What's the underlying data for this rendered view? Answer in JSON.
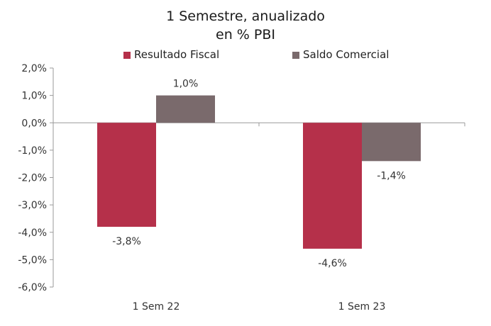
{
  "chart_data": {
    "type": "bar",
    "title": "1 Semestre, anualizado",
    "subtitle": "en % PBI",
    "categories": [
      "1 Sem 22",
      "1 Sem 23"
    ],
    "series": [
      {
        "name": "Resultado Fiscal",
        "color": "#B5304A",
        "values": [
          -3.8,
          -4.6
        ],
        "labels": [
          "-3,8%",
          "-4,6%"
        ]
      },
      {
        "name": "Saldo Comercial",
        "color": "#7A6A6C",
        "values": [
          1.0,
          -1.4
        ],
        "labels": [
          "1,0%",
          "-1,4%"
        ]
      }
    ],
    "ylim": [
      -6,
      2
    ],
    "yticks": [
      2,
      1,
      0,
      -1,
      -2,
      -3,
      -4,
      -5,
      -6
    ],
    "ytick_labels": [
      "2,0%",
      "1,0%",
      "0,0%",
      "-1,0%",
      "-2,0%",
      "-3,0%",
      "-4,0%",
      "-5,0%",
      "-6,0%"
    ],
    "grid": false,
    "legend_position": "top"
  }
}
